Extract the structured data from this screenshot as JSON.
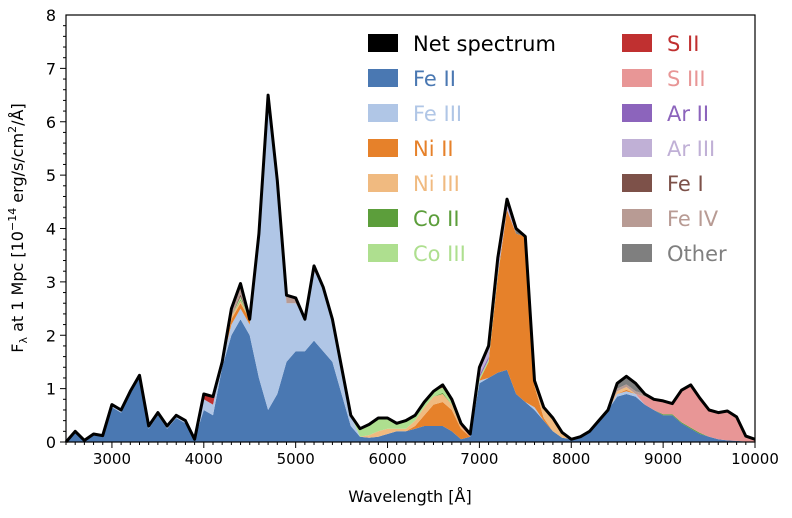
{
  "chart_data": {
    "type": "area",
    "stacked": true,
    "title": "",
    "xlabel": "Wavelength [Å]",
    "ylabel_parts": {
      "main": "F",
      "sub": "λ",
      "mid": " at 1 Mpc [10",
      "sup": "−14",
      "tail": " erg/s/cm",
      "sup2": "2",
      "end": "/Å]"
    },
    "xlim": [
      2500,
      10000
    ],
    "ylim": [
      0,
      8
    ],
    "x_ticks": [
      "3000",
      "4000",
      "5000",
      "6000",
      "7000",
      "8000",
      "9000",
      "10000"
    ],
    "y_ticks": [
      "0",
      "1",
      "2",
      "3",
      "4",
      "5",
      "6",
      "7",
      "8"
    ],
    "grid": false,
    "legend_position": "top-right",
    "x": [
      2500,
      2600,
      2700,
      2800,
      2900,
      3000,
      3100,
      3200,
      3300,
      3400,
      3500,
      3600,
      3700,
      3800,
      3900,
      4000,
      4100,
      4200,
      4300,
      4400,
      4500,
      4600,
      4700,
      4800,
      4900,
      5000,
      5100,
      5200,
      5300,
      5400,
      5500,
      5600,
      5700,
      5800,
      5900,
      6000,
      6100,
      6200,
      6300,
      6400,
      6500,
      6600,
      6700,
      6800,
      6900,
      7000,
      7100,
      7200,
      7300,
      7400,
      7500,
      7600,
      7700,
      7800,
      7900,
      8000,
      8100,
      8200,
      8300,
      8400,
      8500,
      8600,
      8700,
      8800,
      8900,
      9000,
      9100,
      9200,
      9300,
      9400,
      9500,
      9600,
      9700,
      9800,
      9900,
      10000
    ],
    "net": {
      "name": "Net spectrum",
      "color": "#000000",
      "note_values": "sum of all components"
    },
    "series": [
      {
        "name": "Fe II",
        "color": "#4a78b2",
        "values": [
          [
            2600,
            0.2
          ],
          [
            2700,
            0.03
          ],
          [
            2800,
            0.15
          ],
          [
            2900,
            0.12
          ],
          [
            3000,
            0.65
          ],
          [
            3100,
            0.55
          ],
          [
            3200,
            0.9
          ],
          [
            3300,
            1.2
          ],
          [
            3400,
            0.25
          ],
          [
            3500,
            0.5
          ],
          [
            3600,
            0.25
          ],
          [
            3700,
            0.45
          ],
          [
            3800,
            0.35
          ],
          [
            3900,
            0.05
          ],
          [
            4000,
            0.6
          ],
          [
            4100,
            0.5
          ],
          [
            4200,
            1.4
          ],
          [
            4300,
            2.0
          ],
          [
            4400,
            2.3
          ],
          [
            4500,
            2.0
          ],
          [
            4600,
            1.2
          ],
          [
            4700,
            0.6
          ],
          [
            4800,
            0.9
          ],
          [
            4900,
            1.5
          ],
          [
            5000,
            1.7
          ],
          [
            5100,
            1.7
          ],
          [
            5200,
            1.9
          ],
          [
            5300,
            1.7
          ],
          [
            5400,
            1.5
          ],
          [
            5500,
            0.9
          ],
          [
            5600,
            0.3
          ],
          [
            5700,
            0.1
          ],
          [
            5800,
            0.08
          ],
          [
            5900,
            0.1
          ],
          [
            6000,
            0.15
          ],
          [
            6100,
            0.2
          ],
          [
            6200,
            0.2
          ],
          [
            6300,
            0.25
          ],
          [
            6400,
            0.3
          ],
          [
            6500,
            0.3
          ],
          [
            6600,
            0.3
          ],
          [
            6700,
            0.2
          ],
          [
            6800,
            0.05
          ],
          [
            6900,
            0.1
          ],
          [
            7000,
            1.1
          ],
          [
            7100,
            1.2
          ],
          [
            7200,
            1.3
          ],
          [
            7300,
            1.35
          ],
          [
            7400,
            0.9
          ],
          [
            7500,
            0.75
          ],
          [
            7600,
            0.6
          ],
          [
            7700,
            0.4
          ],
          [
            7800,
            0.2
          ],
          [
            7900,
            0.08
          ],
          [
            8000,
            0.05
          ],
          [
            8100,
            0.1
          ],
          [
            8200,
            0.2
          ],
          [
            8300,
            0.4
          ],
          [
            8400,
            0.6
          ],
          [
            8500,
            0.85
          ],
          [
            8600,
            0.9
          ],
          [
            8700,
            0.85
          ],
          [
            8800,
            0.7
          ],
          [
            8900,
            0.6
          ],
          [
            9000,
            0.5
          ],
          [
            9100,
            0.5
          ],
          [
            9200,
            0.35
          ],
          [
            9300,
            0.25
          ],
          [
            9400,
            0.15
          ],
          [
            9500,
            0.1
          ],
          [
            9600,
            0.05
          ],
          [
            9700,
            0.03
          ],
          [
            9800,
            0.02
          ],
          [
            9900,
            0.01
          ]
        ]
      },
      {
        "name": "Fe III",
        "color": "#b0c6e6",
        "values": [
          [
            3000,
            0.05
          ],
          [
            3100,
            0.05
          ],
          [
            3200,
            0.05
          ],
          [
            3300,
            0.05
          ],
          [
            3400,
            0.05
          ],
          [
            3500,
            0.05
          ],
          [
            3600,
            0.05
          ],
          [
            3700,
            0.05
          ],
          [
            3800,
            0.05
          ],
          [
            4000,
            0.2
          ],
          [
            4100,
            0.2
          ],
          [
            4200,
            0.1
          ],
          [
            4300,
            0.2
          ],
          [
            4400,
            0.2
          ],
          [
            4500,
            0.2
          ],
          [
            4600,
            2.7
          ],
          [
            4700,
            5.9
          ],
          [
            4800,
            3.8
          ],
          [
            4900,
            1.1
          ],
          [
            5000,
            0.9
          ],
          [
            5100,
            0.6
          ],
          [
            5200,
            1.3
          ],
          [
            5300,
            1.2
          ],
          [
            5400,
            0.8
          ],
          [
            5500,
            0.5
          ],
          [
            5600,
            0.2
          ],
          [
            7000,
            0.05
          ],
          [
            7600,
            0.05
          ],
          [
            8500,
            0.05
          ],
          [
            8600,
            0.05
          ],
          [
            8700,
            0.05
          ]
        ]
      },
      {
        "name": "Ni II",
        "color": "#e6812a",
        "values": [
          [
            4300,
            0.1
          ],
          [
            4400,
            0.1
          ],
          [
            4500,
            0.1
          ],
          [
            6300,
            0.05
          ],
          [
            6400,
            0.2
          ],
          [
            6500,
            0.4
          ],
          [
            6600,
            0.45
          ],
          [
            6700,
            0.4
          ],
          [
            6800,
            0.2
          ],
          [
            7100,
            0.3
          ],
          [
            7200,
            1.8
          ],
          [
            7300,
            3.0
          ],
          [
            7400,
            3.0
          ],
          [
            7500,
            3.1
          ],
          [
            7600,
            0.4
          ],
          [
            7700,
            0.05
          ],
          [
            8600,
            0.03
          ]
        ]
      },
      {
        "name": "Ni III",
        "color": "#f0ba80",
        "values": [
          [
            4300,
            0.05
          ],
          [
            4400,
            0.05
          ],
          [
            5800,
            0.05
          ],
          [
            5900,
            0.1
          ],
          [
            6000,
            0.1
          ],
          [
            6100,
            0.05
          ],
          [
            6200,
            0.05
          ],
          [
            6300,
            0.1
          ],
          [
            6400,
            0.15
          ],
          [
            6500,
            0.15
          ],
          [
            6600,
            0.15
          ],
          [
            6700,
            0.1
          ],
          [
            6800,
            0.05
          ],
          [
            7600,
            0.1
          ],
          [
            7700,
            0.2
          ],
          [
            7800,
            0.25
          ],
          [
            7900,
            0.1
          ],
          [
            8500,
            0.05
          ],
          [
            8600,
            0.05
          ]
        ]
      },
      {
        "name": "Co II",
        "color": "#5c9e3b",
        "values": [
          [
            4400,
            0.02
          ],
          [
            6600,
            0.02
          ],
          [
            9000,
            0.02
          ],
          [
            9100,
            0.02
          ],
          [
            9200,
            0.02
          ],
          [
            9300,
            0.02
          ],
          [
            9400,
            0.02
          ]
        ]
      },
      {
        "name": "Co III",
        "color": "#aedf8f",
        "values": [
          [
            4400,
            0.05
          ],
          [
            5700,
            0.15
          ],
          [
            5800,
            0.2
          ],
          [
            5900,
            0.25
          ],
          [
            6000,
            0.2
          ],
          [
            6100,
            0.1
          ],
          [
            6200,
            0.15
          ],
          [
            6300,
            0.1
          ],
          [
            6400,
            0.1
          ],
          [
            6500,
            0.1
          ],
          [
            6600,
            0.1
          ],
          [
            6700,
            0.05
          ],
          [
            7000,
            0.05
          ],
          [
            7100,
            0.05
          ],
          [
            7200,
            0.05
          ]
        ]
      },
      {
        "name": "S II",
        "color": "#c03030",
        "values": [
          [
            4000,
            0.1
          ],
          [
            4100,
            0.15
          ],
          [
            6600,
            0.05
          ],
          [
            6700,
            0.05
          ],
          [
            6800,
            0.05
          ]
        ]
      },
      {
        "name": "S III",
        "color": "#e89696",
        "values": [
          [
            8800,
            0.15
          ],
          [
            8900,
            0.2
          ],
          [
            9000,
            0.25
          ],
          [
            9100,
            0.2
          ],
          [
            9200,
            0.6
          ],
          [
            9300,
            0.8
          ],
          [
            9400,
            0.65
          ],
          [
            9500,
            0.5
          ],
          [
            9600,
            0.5
          ],
          [
            9700,
            0.55
          ],
          [
            9800,
            0.45
          ],
          [
            9900,
            0.1
          ],
          [
            10000,
            0.05
          ]
        ]
      },
      {
        "name": "Ar II",
        "color": "#8c64bc",
        "values": [
          [
            7000,
            0.05
          ],
          [
            7100,
            0.05
          ],
          [
            7200,
            0.05
          ]
        ]
      },
      {
        "name": "Ar III",
        "color": "#c0b0d6",
        "values": [
          [
            6900,
            0.05
          ],
          [
            7000,
            0.15
          ],
          [
            7100,
            0.2
          ],
          [
            7200,
            0.15
          ],
          [
            7300,
            0.1
          ]
        ]
      },
      {
        "name": "Fe I",
        "color": "#7d5149",
        "values": [
          [
            4400,
            0.05
          ],
          [
            4800,
            0.05
          ]
        ]
      },
      {
        "name": "Fe IV",
        "color": "#b89b94",
        "values": [
          [
            4300,
            0.15
          ],
          [
            4400,
            0.15
          ],
          [
            4800,
            0.15
          ],
          [
            4900,
            0.15
          ],
          [
            5000,
            0.1
          ],
          [
            5200,
            0.1
          ],
          [
            8500,
            0.05
          ],
          [
            8600,
            0.05
          ],
          [
            8700,
            0.05
          ],
          [
            8800,
            0.05
          ]
        ]
      },
      {
        "name": "Other",
        "color": "#7f7f7f",
        "values": [
          [
            4400,
            0.05
          ],
          [
            7200,
            0.1
          ],
          [
            7300,
            0.1
          ],
          [
            7400,
            0.1
          ],
          [
            8500,
            0.1
          ],
          [
            8600,
            0.15
          ],
          [
            8700,
            0.15
          ]
        ]
      }
    ]
  }
}
